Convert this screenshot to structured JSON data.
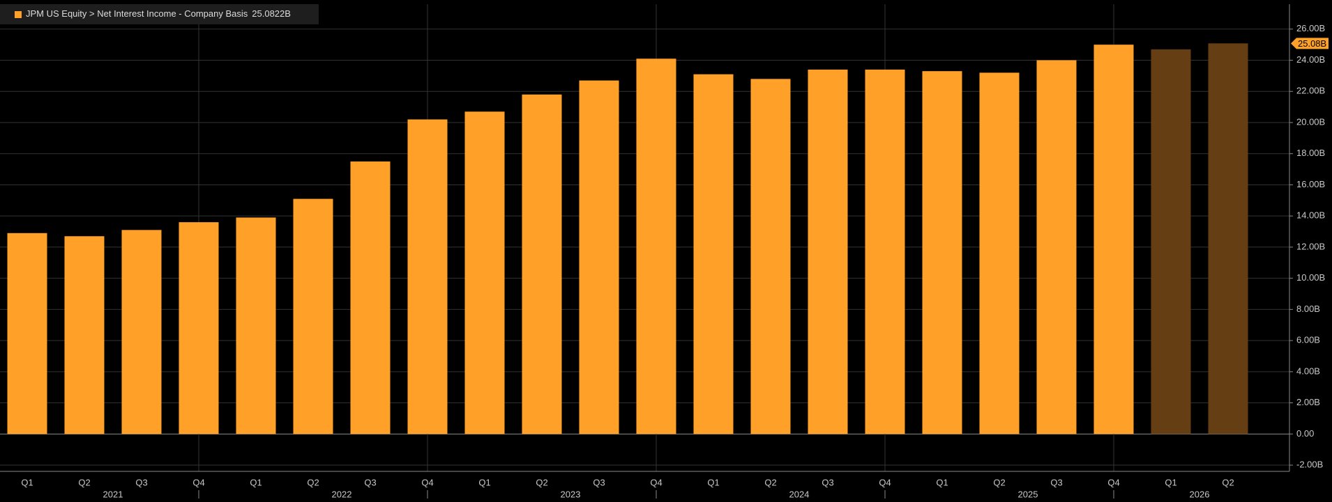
{
  "chart_data": {
    "type": "bar",
    "legend_label": "JPM US Equity > Net Interest Income - Company Basis",
    "legend_value": "25.0822B",
    "last_value_tag": "25.08B",
    "categories": [
      "Q1",
      "Q2",
      "Q3",
      "Q4",
      "Q1",
      "Q2",
      "Q3",
      "Q4",
      "Q1",
      "Q2",
      "Q3",
      "Q4",
      "Q1",
      "Q2",
      "Q3",
      "Q4",
      "Q1",
      "Q2",
      "Q3",
      "Q4",
      "Q1",
      "Q2"
    ],
    "year_groups": [
      "2021",
      "2022",
      "2023",
      "2024",
      "2025",
      "2026"
    ],
    "values": [
      12.9,
      12.7,
      13.1,
      13.6,
      13.9,
      15.1,
      17.5,
      20.2,
      20.7,
      21.8,
      22.7,
      24.1,
      23.1,
      22.8,
      23.4,
      23.4,
      23.3,
      23.2,
      24.0,
      25.0,
      24.7,
      25.0822
    ],
    "colors": [
      "#ffa028",
      "#ffa028",
      "#ffa028",
      "#ffa028",
      "#ffa028",
      "#ffa028",
      "#ffa028",
      "#ffa028",
      "#ffa028",
      "#ffa028",
      "#ffa028",
      "#ffa028",
      "#ffa028",
      "#ffa028",
      "#ffa028",
      "#ffa028",
      "#ffa028",
      "#ffa028",
      "#ffa028",
      "#ffa028",
      "#663e13",
      "#663e13"
    ],
    "ylim": [
      -2.4,
      27.6
    ],
    "yticks": [
      {
        "value": -2,
        "label": "-2.00B"
      },
      {
        "value": 0,
        "label": "0.00"
      },
      {
        "value": 2,
        "label": "2.00B"
      },
      {
        "value": 4,
        "label": "4.00B"
      },
      {
        "value": 6,
        "label": "6.00B"
      },
      {
        "value": 8,
        "label": "8.00B"
      },
      {
        "value": 10,
        "label": "10.00B"
      },
      {
        "value": 12,
        "label": "12.00B"
      },
      {
        "value": 14,
        "label": "14.00B"
      },
      {
        "value": 16,
        "label": "16.00B"
      },
      {
        "value": 18,
        "label": "18.00B"
      },
      {
        "value": 20,
        "label": "20.00B"
      },
      {
        "value": 22,
        "label": "22.00B"
      },
      {
        "value": 24,
        "label": "24.00B"
      },
      {
        "value": 26,
        "label": "26.00B"
      }
    ],
    "grid": true
  }
}
